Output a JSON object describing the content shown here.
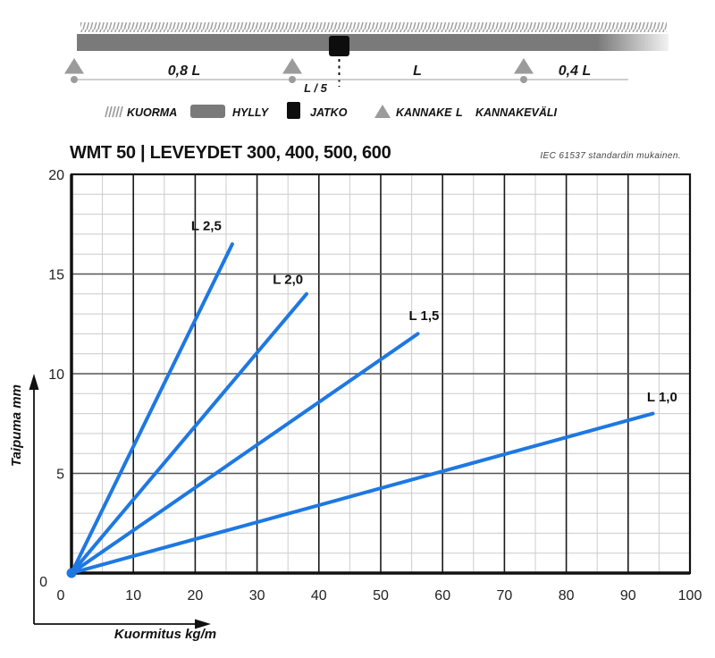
{
  "header": {
    "title": "WMT 50 | LEVEYDET 300, 400, 500, 600",
    "note": "IEC 61537 standardin mukainen."
  },
  "diagram": {
    "span1": "0,8 L",
    "span2": "L",
    "span3": "0,4 L",
    "joint_offset": "L / 5"
  },
  "legend": {
    "items": [
      {
        "icon": "hatch-icon",
        "label": "KUORMA"
      },
      {
        "icon": "beam-icon",
        "label": "HYLLY"
      },
      {
        "icon": "joint-icon",
        "label": "JATKO"
      },
      {
        "icon": "support-icon",
        "label": "KANNAKE"
      },
      {
        "icon": "letter-L",
        "symbol": "L",
        "label": "KANNAKEVÄLI"
      }
    ]
  },
  "colors": {
    "line_blue": "#1e78e2",
    "beam_gray": "#7a7a7a",
    "support_gray": "#9b9b9b",
    "hatch_gray": "#999999",
    "grid_minor": "#cccccc",
    "grid_major_h": "#555555",
    "grid_major_v": "#1a1a1a",
    "axis_black": "#111111"
  },
  "chart_data": {
    "type": "line",
    "title": "WMT 50 | LEVEYDET 300, 400, 500, 600",
    "xlabel": "Kuormitus kg/m",
    "ylabel": "Taipuma mm",
    "xlim": [
      0,
      100
    ],
    "ylim": [
      0,
      20
    ],
    "x_major_step": 10,
    "x_minor_step": 5,
    "y_major_step": 5,
    "y_minor_step": 1,
    "x_ticks": [
      0,
      10,
      20,
      30,
      40,
      50,
      60,
      70,
      80,
      90,
      100
    ],
    "y_ticks": [
      0,
      5,
      10,
      15,
      20
    ],
    "grid": true,
    "legend_position": "inline-labels",
    "series": [
      {
        "name": "L 2,5",
        "points": [
          [
            0,
            0
          ],
          [
            26,
            16.5
          ]
        ],
        "label_at": [
          21.8,
          17.2
        ]
      },
      {
        "name": "L 2,0",
        "points": [
          [
            0,
            0
          ],
          [
            38,
            14.0
          ]
        ],
        "label_at": [
          35.0,
          14.5
        ]
      },
      {
        "name": "L 1,5",
        "points": [
          [
            0,
            0
          ],
          [
            56,
            12.0
          ]
        ],
        "label_at": [
          57.0,
          12.7
        ]
      },
      {
        "name": "L 1,0",
        "points": [
          [
            0,
            0
          ],
          [
            94,
            8.0
          ]
        ],
        "label_at": [
          95.5,
          8.6
        ]
      }
    ]
  }
}
